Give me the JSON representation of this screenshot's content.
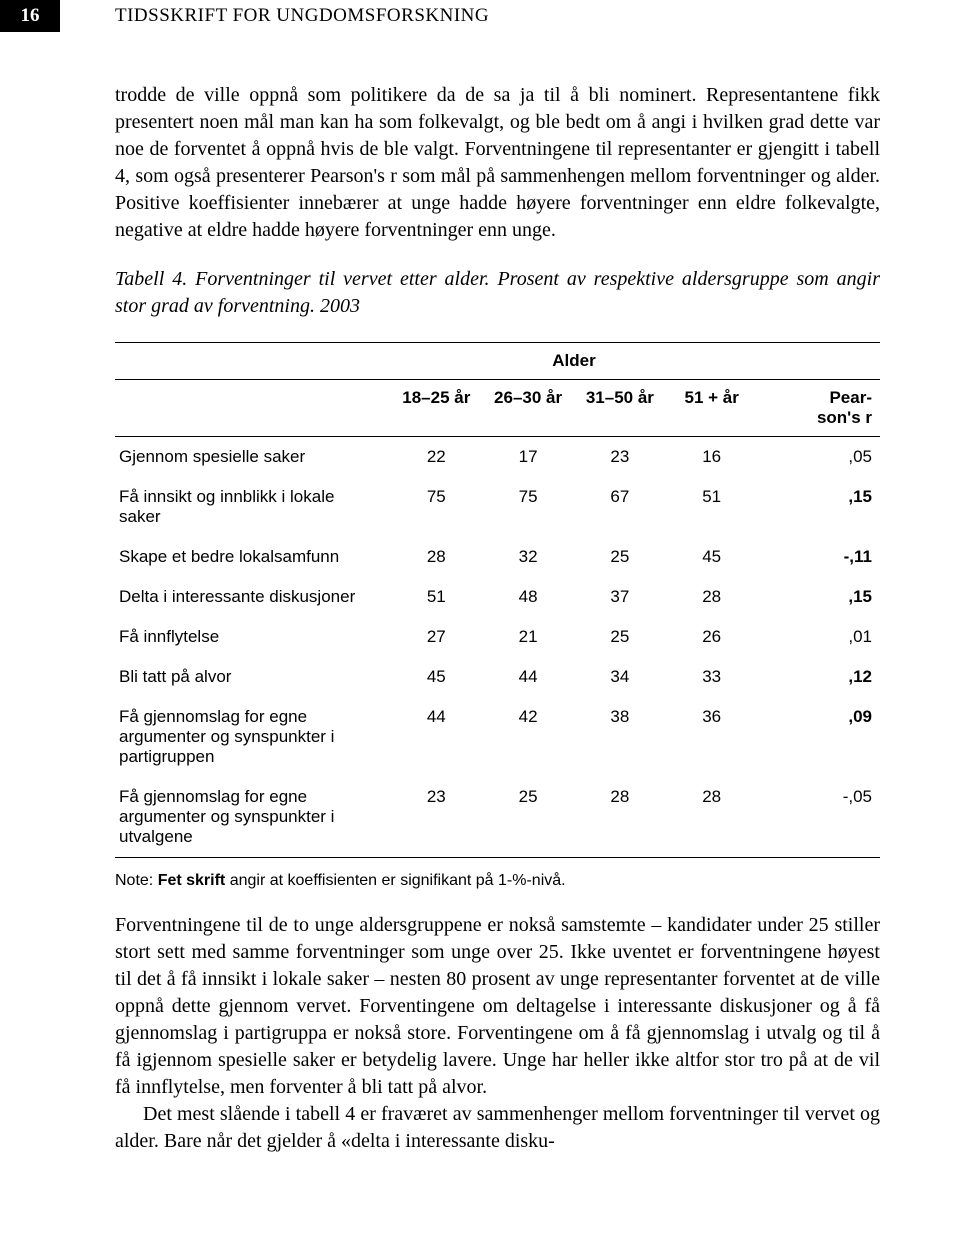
{
  "header": {
    "page_number": "16",
    "journal_title": "TIDSSKRIFT FOR UNGDOMSFORSKNING"
  },
  "paragraphs": {
    "p1": "trodde de ville oppnå som politikere da de sa ja til å bli nominert. Representantene fikk presentert noen mål man kan ha som folkevalgt, og ble bedt om å angi i hvilken grad dette var noe de forventet å oppnå hvis de ble valgt. Forventningene til representanter er gjengitt i tabell 4, som også presenterer Pearson's r som mål på sammenhengen mellom forventninger og alder. Positive koeffisienter innebærer at unge hadde høyere forventninger enn eldre folkevalgte, negative at eldre hadde høyere forventninger enn unge.",
    "caption": "Tabell 4. Forventninger til vervet etter alder. Prosent av respektive aldersgruppe som angir stor grad av forventning. 2003",
    "p2": "Forventningene til de to unge aldersgruppene er nokså samstemte – kandidater under 25 stiller stort sett med samme forventninger som unge over 25. Ikke uventet er forventningene høyest til det å få innsikt i lokale saker – nesten 80 prosent av unge representanter forventet at de ville oppnå dette gjennom vervet. Forventingene om deltagelse i interessante diskusjoner og å få gjennomslag i partigruppa er nokså store. Forventingene om å få gjennomslag i utvalg og til å få igjennom spesielle saker er betydelig lavere. Unge har heller ikke altfor stor tro på at de vil få innflytelse, men forventer å bli tatt på alvor.",
    "p3": "Det mest slående i tabell 4 er fraværet av sammenhenger mellom forventninger til vervet og alder. Bare når det gjelder å «delta i interessante disku-"
  },
  "table": {
    "super_header": "Alder",
    "columns": [
      "18–25 år",
      "26–30 år",
      "31–50 år",
      "51 + år",
      "Pearson's r"
    ],
    "rows": [
      {
        "label": "Gjennom spesielle saker",
        "vals": [
          "22",
          "17",
          "23",
          "16"
        ],
        "r": ",05",
        "bold": false
      },
      {
        "label": "Få innsikt og innblikk i lokale saker",
        "vals": [
          "75",
          "75",
          "67",
          "51"
        ],
        "r": ",15",
        "bold": true
      },
      {
        "label": "Skape et bedre lokalsamfunn",
        "vals": [
          "28",
          "32",
          "25",
          "45"
        ],
        "r": "-,11",
        "bold": true
      },
      {
        "label": "Delta i interessante diskusjoner",
        "vals": [
          "51",
          "48",
          "37",
          "28"
        ],
        "r": ",15",
        "bold": true
      },
      {
        "label": "Få innflytelse",
        "vals": [
          "27",
          "21",
          "25",
          "26"
        ],
        "r": ",01",
        "bold": false
      },
      {
        "label": "Bli tatt på alvor",
        "vals": [
          "45",
          "44",
          "34",
          "33"
        ],
        "r": ",12",
        "bold": true
      },
      {
        "label": "Få gjennomslag for egne argumenter og synspunkter i partigruppen",
        "vals": [
          "44",
          "42",
          "38",
          "36"
        ],
        "r": ",09",
        "bold": true
      },
      {
        "label": "Få gjennomslag for egne argumenter og synspunkter i utvalgene",
        "vals": [
          "23",
          "25",
          "28",
          "28"
        ],
        "r": "-,05",
        "bold": false
      }
    ],
    "note_prefix": "Note: ",
    "note_bold": "Fet skrift",
    "note_rest": " angir at koeffisienten er signifikant på 1-%-nivå."
  },
  "style": {
    "col_widths": [
      "36%",
      "12%",
      "12%",
      "12%",
      "12%",
      "16%"
    ]
  }
}
